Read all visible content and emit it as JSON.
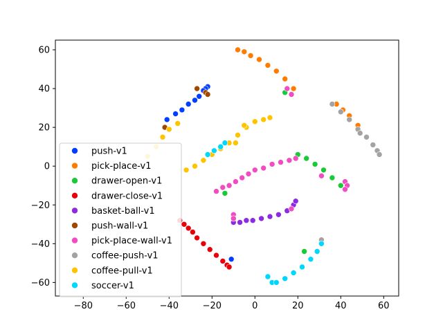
{
  "chart_data": {
    "type": "scatter",
    "title": "",
    "xlabel": "",
    "ylabel": "",
    "xlim": [
      -93,
      67
    ],
    "ylim": [
      -67,
      65
    ],
    "xticks": [
      -80,
      -60,
      -40,
      -20,
      0,
      20,
      40,
      60
    ],
    "yticks": [
      -60,
      -40,
      -20,
      0,
      20,
      40,
      60
    ],
    "xtick_labels": [
      "−80",
      "−60",
      "−40",
      "−20",
      "0",
      "20",
      "40",
      "60"
    ],
    "ytick_labels": [
      "−60",
      "−40",
      "−20",
      "0",
      "20",
      "40",
      "60"
    ],
    "grid": false,
    "legend_position": "lower-left",
    "series": [
      {
        "name": "push-v1",
        "color": "#023eff",
        "x": [
          -22,
          -23,
          -24,
          -26,
          -28,
          -31,
          -34,
          -37,
          -41,
          -11
        ],
        "y": [
          41,
          40,
          39,
          36,
          34,
          32,
          29,
          27,
          24,
          -48
        ]
      },
      {
        "name": "pick-place-v1",
        "color": "#ff7c00",
        "x": [
          -8,
          -5,
          -2,
          2,
          6,
          10,
          14,
          18,
          38,
          41,
          44,
          48
        ],
        "y": [
          60,
          59,
          57,
          55,
          52,
          49,
          45,
          40,
          32,
          29,
          26,
          21
        ]
      },
      {
        "name": "drawer-open-v1",
        "color": "#1ac938",
        "x": [
          14,
          20,
          24,
          28,
          32,
          36,
          40,
          -14,
          23
        ],
        "y": [
          38,
          6,
          4,
          1,
          -2,
          -6,
          -10,
          -14,
          -44
        ]
      },
      {
        "name": "drawer-close-v1",
        "color": "#e8000b",
        "x": [
          -35,
          -33,
          -31,
          -29,
          -27,
          -24,
          -21,
          -18,
          -15,
          -13,
          -12
        ],
        "y": [
          -28,
          -30,
          -32,
          -34,
          -37,
          -40,
          -43,
          -46,
          -49,
          -51,
          -52
        ]
      },
      {
        "name": "basket-ball-v1",
        "color": "#8b2be2",
        "x": [
          -10,
          -7,
          -4,
          -1,
          3,
          7,
          11,
          15,
          18,
          19
        ],
        "y": [
          -29,
          -29,
          -28,
          -28,
          -27,
          -26,
          -25,
          -23,
          -20,
          -18
        ]
      },
      {
        "name": "push-wall-v1",
        "color": "#9f4800",
        "x": [
          -27,
          -23,
          -22,
          -42
        ],
        "y": [
          40,
          38,
          37,
          20
        ]
      },
      {
        "name": "pick-place-wall-v1",
        "color": "#f14cc1",
        "x": [
          -18,
          -15,
          -12,
          -9,
          -6,
          -3,
          0,
          4,
          8,
          12,
          16,
          19,
          15,
          17,
          31,
          42,
          43,
          42,
          -10,
          -10,
          17
        ],
        "y": [
          -13,
          -11,
          -10,
          -8,
          -6,
          -4,
          -2,
          -1,
          1,
          2,
          3,
          4,
          40,
          37,
          -5,
          -8,
          -10,
          -12,
          -25,
          -27,
          -22
        ]
      },
      {
        "name": "coffee-push-v1",
        "color": "#a3a3a3",
        "x": [
          36,
          40,
          44,
          48,
          52,
          55,
          57,
          58,
          49,
          31
        ],
        "y": [
          32,
          28,
          24,
          19,
          15,
          11,
          8,
          6,
          17,
          -38
        ]
      },
      {
        "name": "coffee-pull-v1",
        "color": "#ffc400",
        "x": [
          -50,
          -46,
          -43,
          -40,
          -36,
          -32,
          -28,
          -24,
          -20,
          -16,
          -12,
          -8,
          -4,
          0,
          4,
          7,
          -9,
          -5
        ],
        "y": [
          5,
          10,
          15,
          19,
          22,
          -2,
          0,
          3,
          6,
          9,
          12,
          16,
          20,
          23,
          24,
          25,
          12,
          21
        ]
      },
      {
        "name": "soccer-v1",
        "color": "#00d7ff",
        "x": [
          -22,
          -19,
          -16,
          -14,
          6,
          8,
          10,
          14,
          18,
          22,
          26,
          29,
          31
        ],
        "y": [
          6,
          8,
          10,
          12,
          -57,
          -60,
          -60,
          -58,
          -55,
          -52,
          -48,
          -44,
          -40
        ]
      }
    ]
  }
}
